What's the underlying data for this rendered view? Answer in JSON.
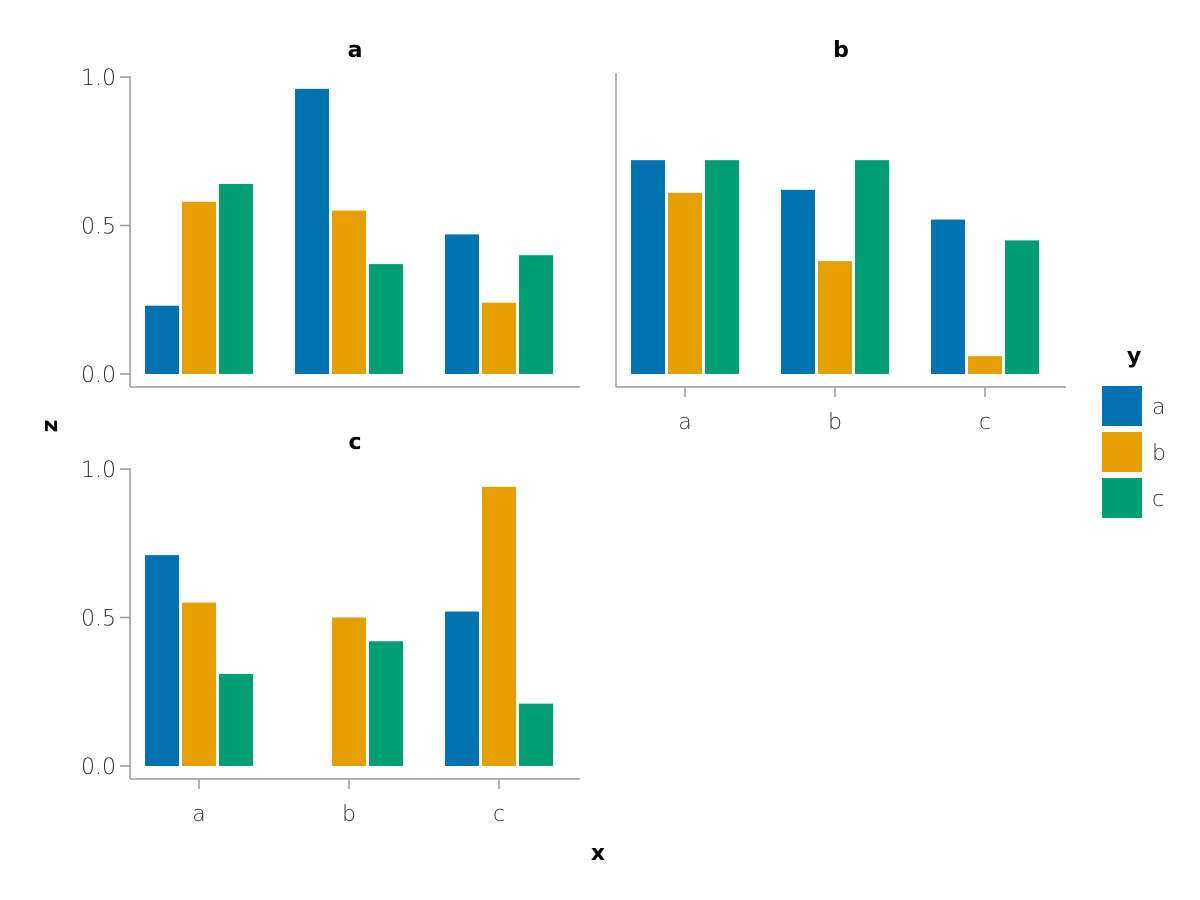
{
  "chart_data": {
    "type": "bar",
    "xlabel": "x",
    "ylabel": "z",
    "ylim": [
      0,
      1
    ],
    "yticks": [
      "0.0",
      "0.5",
      "1.0"
    ],
    "yticks_values": [
      0,
      0.5,
      1
    ],
    "categories": [
      "a",
      "b",
      "c"
    ],
    "legend": {
      "title": "y",
      "placement": "right",
      "entries": [
        {
          "label": "a",
          "color": "#0072b2"
        },
        {
          "label": "b",
          "color": "#e69f00"
        },
        {
          "label": "c",
          "color": "#009e73"
        }
      ]
    },
    "facets": [
      {
        "title": "a",
        "series": [
          {
            "name": "a",
            "values": [
              0.23,
              0.96,
              0.47
            ]
          },
          {
            "name": "b",
            "values": [
              0.58,
              0.55,
              0.24
            ]
          },
          {
            "name": "c",
            "values": [
              0.64,
              0.37,
              0.4
            ]
          }
        ]
      },
      {
        "title": "b",
        "series": [
          {
            "name": "a",
            "values": [
              0.72,
              0.62,
              0.52
            ]
          },
          {
            "name": "b",
            "values": [
              0.61,
              0.38,
              0.06
            ]
          },
          {
            "name": "c",
            "values": [
              0.72,
              0.72,
              0.45
            ]
          }
        ]
      },
      {
        "title": "c",
        "series": [
          {
            "name": "a",
            "values": [
              0.71,
              0,
              0.52
            ]
          },
          {
            "name": "b",
            "values": [
              0.55,
              0.5,
              0.94
            ]
          },
          {
            "name": "c",
            "values": [
              0.31,
              0.42,
              0.21
            ]
          }
        ]
      }
    ]
  }
}
